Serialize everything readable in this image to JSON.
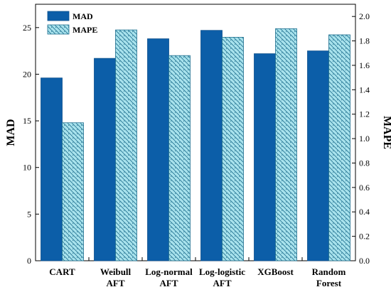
{
  "chart_data": {
    "type": "bar",
    "categories": [
      [
        "CART"
      ],
      [
        "Weibull",
        "AFT"
      ],
      [
        "Log-normal",
        "AFT"
      ],
      [
        "Log-logistic",
        "AFT"
      ],
      [
        "XGBoost"
      ],
      [
        "Random",
        "Forest"
      ]
    ],
    "series": [
      {
        "name": "MAD",
        "axis": "left",
        "values": [
          19.6,
          21.7,
          23.8,
          24.7,
          22.2,
          22.5
        ],
        "color": "#0c5ea8",
        "pattern": "solid"
      },
      {
        "name": "MAPE",
        "axis": "right",
        "values": [
          1.13,
          1.89,
          1.68,
          1.83,
          1.9,
          1.85
        ],
        "color": "#a8e2ec",
        "pattern": "hatch"
      }
    ],
    "left_axis": {
      "label": "MAD",
      "ylim": [
        0,
        27.5
      ],
      "ticks": [
        0,
        5,
        10,
        15,
        20,
        25
      ]
    },
    "right_axis": {
      "label": "MAPE",
      "ylim": [
        0,
        2.1
      ],
      "ticks": [
        "0.0",
        "0.2",
        "0.4",
        "0.6",
        "0.8",
        "1.0",
        "1.2",
        "1.4",
        "1.6",
        "1.8",
        "2.0"
      ]
    },
    "legend": {
      "position": "top-left",
      "items": [
        "MAD",
        "MAPE"
      ]
    },
    "grid": false
  }
}
